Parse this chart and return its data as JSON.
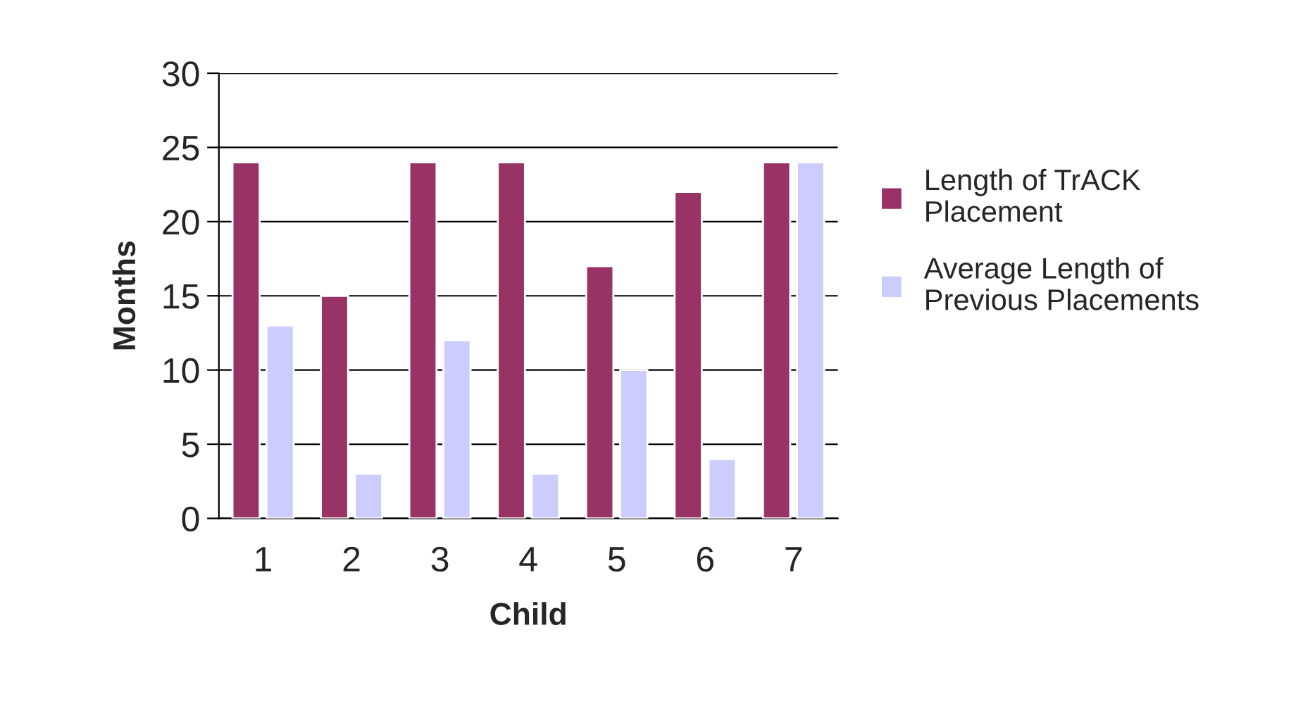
{
  "chart_data": {
    "type": "bar",
    "xlabel": "Child",
    "ylabel": "Months",
    "categories": [
      "1",
      "2",
      "3",
      "4",
      "5",
      "6",
      "7"
    ],
    "series": [
      {
        "name": "Length of TrACK\nPlacement",
        "color": "#993366",
        "values": [
          24,
          15,
          24,
          24,
          17,
          22,
          24
        ]
      },
      {
        "name": "Average Length of\nPrevious Placements",
        "color": "#ccccff",
        "values": [
          13,
          3,
          12,
          3,
          10,
          4,
          24
        ]
      }
    ],
    "ylim": [
      0,
      30
    ],
    "yticks": [
      0,
      5,
      10,
      15,
      20,
      25,
      30
    ],
    "grid": "y",
    "legend": "right"
  }
}
